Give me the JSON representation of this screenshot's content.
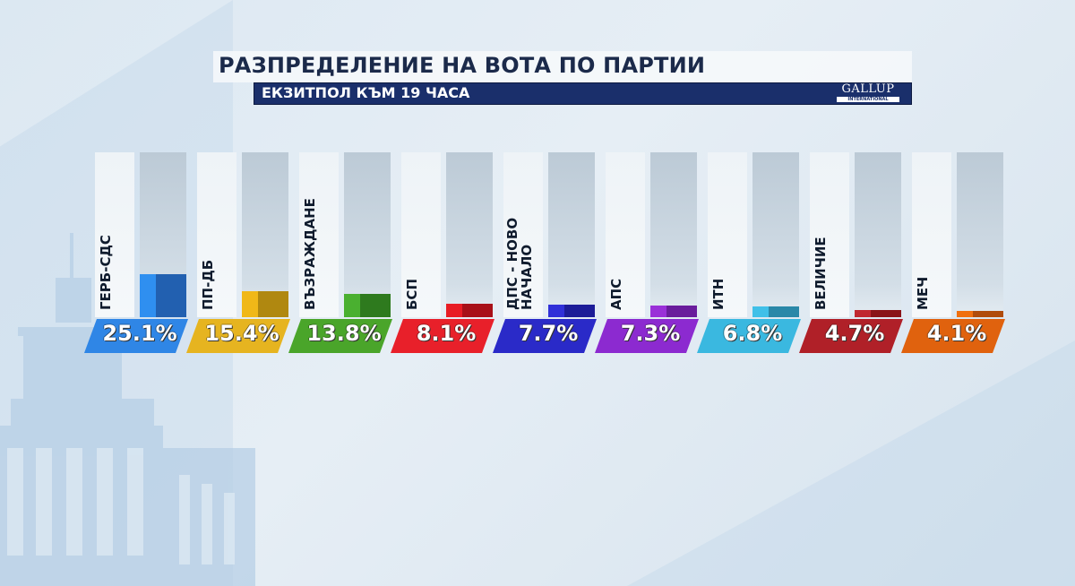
{
  "header": {
    "title": "РАЗПРЕДЕЛЕНИЕ НА ВОТА ПО ПАРТИИ",
    "subtitle": "ЕКЗИТПОЛ КЪМ 19 ЧАСА",
    "logo_main": "GALLUP",
    "logo_sub": "INTERNATIONAL"
  },
  "chart_data": {
    "type": "bar",
    "title": "РАЗПРЕДЕЛЕНИЕ НА ВОТА ПО ПАРТИИ",
    "subtitle": "ЕКЗИТПОЛ КЪМ 19 ЧАСА",
    "source": "GALLUP INTERNATIONAL",
    "categories": [
      "ГЕРБ-СДС",
      "ПП-ДБ",
      "ВЪЗРАЖДАНЕ",
      "БСП",
      "ДПС - НОВО НАЧАЛО",
      "АПС",
      "ИТН",
      "ВЕЛИЧИЕ",
      "МЕЧ"
    ],
    "values": [
      25.1,
      15.4,
      13.8,
      8.1,
      7.7,
      7.3,
      6.8,
      4.7,
      4.1
    ],
    "labels": [
      "25.1%",
      "15.4%",
      "13.8%",
      "8.1%",
      "7.7%",
      "7.3%",
      "6.8%",
      "4.7%",
      "4.1%"
    ],
    "unit": "%",
    "xlabel": "",
    "ylabel": "",
    "ylim": [
      0,
      100
    ],
    "grid": false,
    "legend": "none",
    "colors": [
      "#2f86e6",
      "#e6b420",
      "#4aa52a",
      "#e8202a",
      "#2a2ac8",
      "#8c2ad0",
      "#3ab8e0",
      "#b02028",
      "#e0620e"
    ]
  },
  "bars": [
    {
      "name": "ГЕРБ-СДС",
      "pct": "25.1%",
      "front": "#2f8ff0",
      "side": "#2260b0",
      "badge": "#2f86e6",
      "h": 48
    },
    {
      "name": "ПП-ДБ",
      "pct": "15.4%",
      "front": "#f0b818",
      "side": "#b08810",
      "badge": "#e6b420",
      "h": 29
    },
    {
      "name": "ВЪЗРАЖДАНЕ",
      "pct": "13.8%",
      "front": "#4ab030",
      "side": "#2e7a1e",
      "badge": "#4aa52a",
      "h": 26
    },
    {
      "name": "БСП",
      "pct": "8.1%",
      "front": "#e81c24",
      "side": "#a81018",
      "badge": "#e8202a",
      "h": 15
    },
    {
      "name": "ДПС - НОВО НАЧАЛО",
      "pct": "7.7%",
      "front": "#3030d8",
      "side": "#1c1c98",
      "badge": "#2a2ac8",
      "h": 14
    },
    {
      "name": "АПС",
      "pct": "7.3%",
      "front": "#9a30d8",
      "side": "#6a1c9c",
      "badge": "#8c2ad0",
      "h": 13
    },
    {
      "name": "ИТН",
      "pct": "6.8%",
      "front": "#40c0e8",
      "side": "#2a88a8",
      "badge": "#3ab8e0",
      "h": 12
    },
    {
      "name": "ВЕЛИЧИЕ",
      "pct": "4.7%",
      "front": "#c02830",
      "side": "#8a1418",
      "badge": "#b02028",
      "h": 8
    },
    {
      "name": "МЕЧ",
      "pct": "4.1%",
      "front": "#f07010",
      "side": "#b04c0c",
      "badge": "#e0620e",
      "h": 7
    }
  ]
}
